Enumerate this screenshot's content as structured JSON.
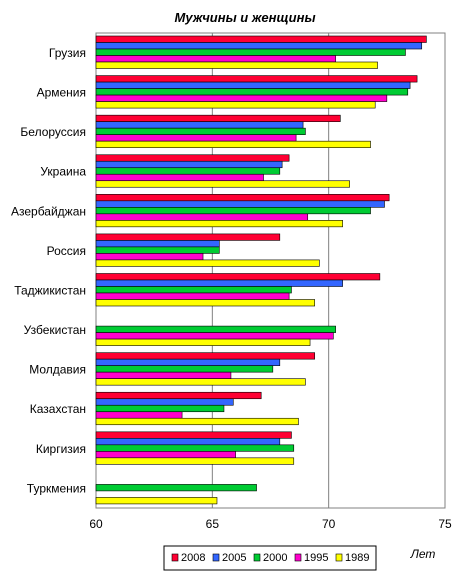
{
  "chart_data": {
    "type": "bar",
    "orientation": "horizontal",
    "title": "Мужчины и женщины",
    "xlabel": "Лет",
    "xlim": [
      60,
      75
    ],
    "xticks": [
      60,
      65,
      70,
      75
    ],
    "grid": "vertical",
    "legend_position": "bottom",
    "categories": [
      "Грузия",
      "Армения",
      "Белоруссия",
      "Украина",
      "Азербайджан",
      "Россия",
      "Таджикистан",
      "Узбекистан",
      "Молдавия",
      "Казахстан",
      "Киргизия",
      "Туркмения"
    ],
    "series": [
      {
        "name": "2008",
        "color": "#ff0033",
        "values": [
          74.2,
          73.8,
          70.5,
          68.3,
          72.6,
          67.9,
          72.2,
          null,
          69.4,
          67.1,
          68.4,
          null
        ]
      },
      {
        "name": "2005",
        "color": "#3366ff",
        "values": [
          74.0,
          73.5,
          68.9,
          68.0,
          72.4,
          65.3,
          70.6,
          null,
          67.9,
          65.9,
          67.9,
          null
        ]
      },
      {
        "name": "2000",
        "color": "#00cc33",
        "values": [
          73.3,
          73.4,
          69.0,
          67.9,
          71.8,
          65.3,
          68.4,
          70.3,
          67.6,
          65.5,
          68.5,
          66.9
        ]
      },
      {
        "name": "1995",
        "color": "#ff00cc",
        "values": [
          70.3,
          72.5,
          68.6,
          67.2,
          69.1,
          64.6,
          68.3,
          70.2,
          65.8,
          63.7,
          66.0,
          null
        ]
      },
      {
        "name": "1989",
        "color": "#ffff00",
        "values": [
          72.1,
          72.0,
          71.8,
          70.9,
          70.6,
          69.6,
          69.4,
          69.2,
          69.0,
          68.7,
          68.5,
          65.2
        ]
      }
    ]
  }
}
